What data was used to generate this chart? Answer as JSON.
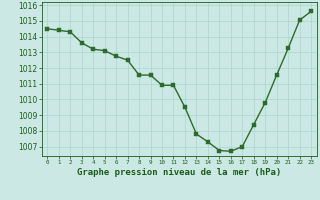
{
  "x": [
    0,
    1,
    2,
    3,
    4,
    5,
    6,
    7,
    8,
    9,
    10,
    11,
    12,
    13,
    14,
    15,
    16,
    17,
    18,
    19,
    20,
    21,
    22,
    23
  ],
  "y": [
    1014.5,
    1014.4,
    1014.3,
    1013.6,
    1013.2,
    1013.1,
    1012.75,
    1012.5,
    1011.55,
    1011.55,
    1010.9,
    1010.9,
    1009.5,
    1007.8,
    1007.3,
    1006.75,
    1006.7,
    1007.0,
    1008.4,
    1009.8,
    1011.55,
    1013.25,
    1015.05,
    1015.6
  ],
  "line_color": "#2d6a2d",
  "marker_color": "#2d6a2d",
  "bg_color": "#cce8e4",
  "grid_color": "#aad4cc",
  "xlabel": "Graphe pression niveau de la mer (hPa)",
  "xlabel_color": "#1a5c1a",
  "tick_color": "#1a5c1a",
  "ylim": [
    1006.4,
    1016.2
  ],
  "yticks": [
    1007,
    1008,
    1009,
    1010,
    1011,
    1012,
    1013,
    1014,
    1015,
    1016
  ],
  "xticks": [
    0,
    1,
    2,
    3,
    4,
    5,
    6,
    7,
    8,
    9,
    10,
    11,
    12,
    13,
    14,
    15,
    16,
    17,
    18,
    19,
    20,
    21,
    22,
    23
  ],
  "xtick_labels": [
    "0",
    "1",
    "2",
    "3",
    "4",
    "5",
    "6",
    "7",
    "8",
    "9",
    "10",
    "11",
    "12",
    "13",
    "14",
    "15",
    "16",
    "17",
    "18",
    "19",
    "20",
    "21",
    "22",
    "23"
  ],
  "line_width": 1.0,
  "marker_size": 2.5,
  "ytick_fontsize": 5.5,
  "xtick_fontsize": 4.2,
  "xlabel_fontsize": 6.5
}
